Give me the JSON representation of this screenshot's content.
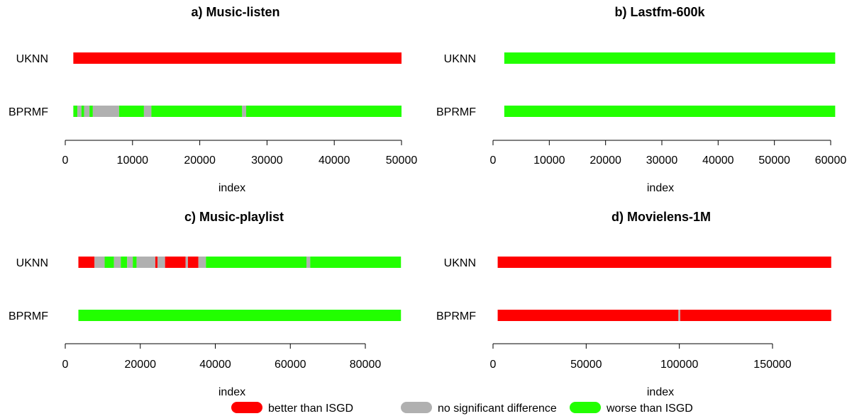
{
  "colors": {
    "better": "#ff0000",
    "nosig": "#b0b0b0",
    "worse": "#22ff00",
    "axis": "#000000"
  },
  "legend": [
    {
      "label": "better than ISGD",
      "color": "#ff0000"
    },
    {
      "label": "no significant difference",
      "color": "#b0b0b0"
    },
    {
      "label": "worse than ISGD",
      "color": "#22ff00"
    }
  ],
  "chart_data": [
    {
      "type": "bar",
      "title": "a) Music-listen",
      "xlabel": "index",
      "xlim": [
        0,
        50000
      ],
      "ticks": [
        0,
        10000,
        20000,
        30000,
        40000,
        50000
      ],
      "series": [
        {
          "name": "UKNN",
          "start": 1200,
          "end": 50000,
          "segments": [
            {
              "from": 1200,
              "to": 50000,
              "status": "better"
            }
          ]
        },
        {
          "name": "BPRMF",
          "start": 1200,
          "end": 50000,
          "segments": [
            {
              "from": 1200,
              "to": 1800,
              "status": "worse"
            },
            {
              "from": 1800,
              "to": 2400,
              "status": "nosig"
            },
            {
              "from": 2400,
              "to": 2800,
              "status": "worse"
            },
            {
              "from": 2800,
              "to": 3600,
              "status": "nosig"
            },
            {
              "from": 3600,
              "to": 4100,
              "status": "worse"
            },
            {
              "from": 4100,
              "to": 8000,
              "status": "nosig"
            },
            {
              "from": 8000,
              "to": 11700,
              "status": "worse"
            },
            {
              "from": 11700,
              "to": 12800,
              "status": "nosig"
            },
            {
              "from": 12800,
              "to": 26300,
              "status": "worse"
            },
            {
              "from": 26300,
              "to": 26900,
              "status": "nosig"
            },
            {
              "from": 26900,
              "to": 50000,
              "status": "worse"
            }
          ]
        }
      ]
    },
    {
      "type": "bar",
      "title": "b) Lastfm-600k",
      "xlabel": "index",
      "xlim": [
        0,
        60000
      ],
      "ticks": [
        0,
        10000,
        20000,
        30000,
        40000,
        50000,
        60000
      ],
      "series": [
        {
          "name": "UKNN",
          "start": 2000,
          "end": 60800,
          "segments": [
            {
              "from": 2000,
              "to": 60800,
              "status": "worse"
            }
          ]
        },
        {
          "name": "BPRMF",
          "start": 2000,
          "end": 60800,
          "segments": [
            {
              "from": 2000,
              "to": 60800,
              "status": "worse"
            }
          ]
        }
      ]
    },
    {
      "type": "bar",
      "title": "c) Music-playlist",
      "xlabel": "index",
      "xlim": [
        0,
        80000
      ],
      "ticks": [
        0,
        20000,
        40000,
        60000,
        80000
      ],
      "series": [
        {
          "name": "UKNN",
          "start": 3500,
          "end": 89500,
          "segments": [
            {
              "from": 3500,
              "to": 7800,
              "status": "better"
            },
            {
              "from": 7800,
              "to": 10500,
              "status": "nosig"
            },
            {
              "from": 10500,
              "to": 13000,
              "status": "worse"
            },
            {
              "from": 13000,
              "to": 14800,
              "status": "nosig"
            },
            {
              "from": 14800,
              "to": 16500,
              "status": "worse"
            },
            {
              "from": 16500,
              "to": 18000,
              "status": "nosig"
            },
            {
              "from": 18000,
              "to": 19000,
              "status": "worse"
            },
            {
              "from": 19000,
              "to": 24000,
              "status": "nosig"
            },
            {
              "from": 24000,
              "to": 24600,
              "status": "better"
            },
            {
              "from": 24600,
              "to": 26600,
              "status": "nosig"
            },
            {
              "from": 26600,
              "to": 32100,
              "status": "better"
            },
            {
              "from": 32100,
              "to": 32700,
              "status": "nosig"
            },
            {
              "from": 32700,
              "to": 35500,
              "status": "better"
            },
            {
              "from": 35500,
              "to": 37500,
              "status": "nosig"
            },
            {
              "from": 37500,
              "to": 64300,
              "status": "worse"
            },
            {
              "from": 64300,
              "to": 65300,
              "status": "nosig"
            },
            {
              "from": 65300,
              "to": 89500,
              "status": "worse"
            }
          ]
        },
        {
          "name": "BPRMF",
          "start": 3500,
          "end": 89500,
          "segments": [
            {
              "from": 3500,
              "to": 89500,
              "status": "worse"
            }
          ]
        }
      ]
    },
    {
      "type": "bar",
      "title": "d) Movielens-1M",
      "xlabel": "index",
      "xlim": [
        0,
        150000
      ],
      "ticks": [
        0,
        50000,
        100000,
        150000
      ],
      "series": [
        {
          "name": "UKNN",
          "start": 2500,
          "end": 181500,
          "segments": [
            {
              "from": 2500,
              "to": 181500,
              "status": "better"
            }
          ]
        },
        {
          "name": "BPRMF",
          "start": 2500,
          "end": 181500,
          "segments": [
            {
              "from": 2500,
              "to": 99500,
              "status": "better"
            },
            {
              "from": 99500,
              "to": 100500,
              "status": "nosig"
            },
            {
              "from": 100500,
              "to": 181500,
              "status": "better"
            }
          ]
        }
      ]
    }
  ]
}
